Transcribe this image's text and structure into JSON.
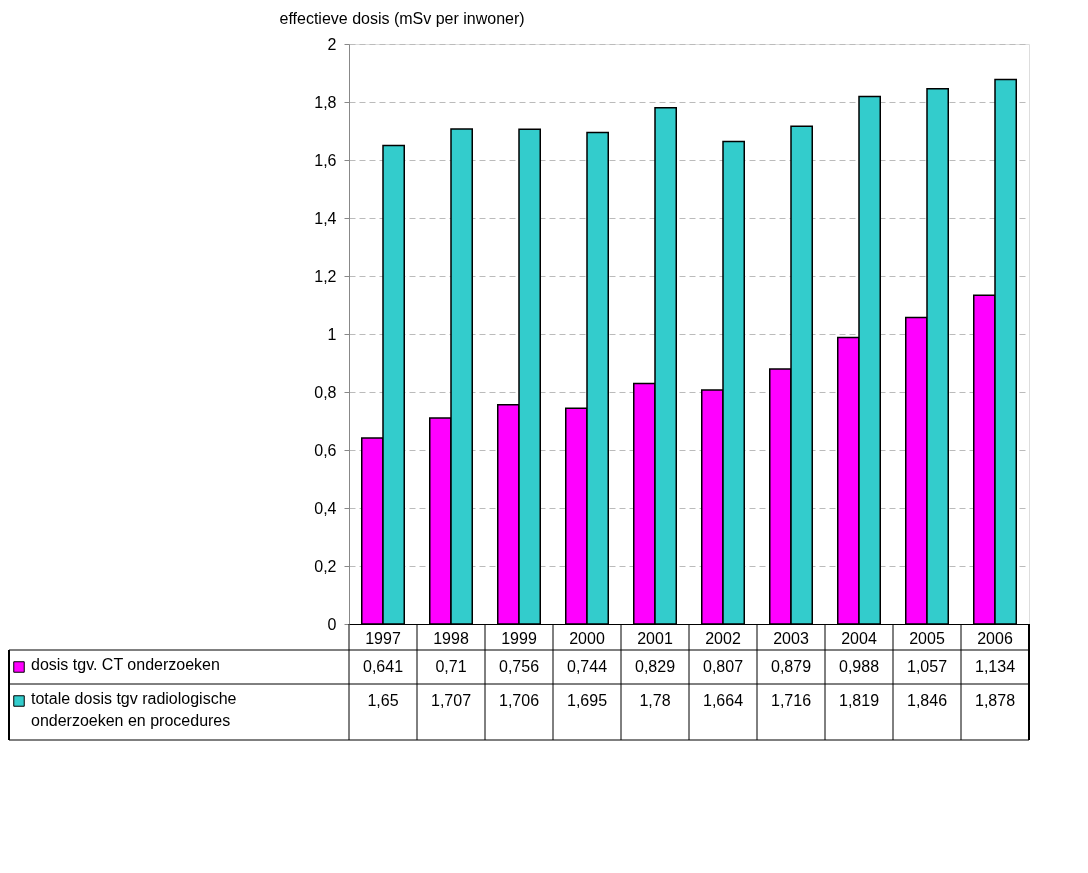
{
  "chart_data": {
    "type": "bar",
    "ylabel": "effectieve dosis (mSv per inwoner)",
    "categories": [
      "1997",
      "1998",
      "1999",
      "2000",
      "2001",
      "2002",
      "2003",
      "2004",
      "2005",
      "2006"
    ],
    "series": [
      {
        "name": "dosis tgv. CT onderzoeken",
        "color": "#ff00ff",
        "values": [
          0.641,
          0.71,
          0.756,
          0.744,
          0.829,
          0.807,
          0.879,
          0.988,
          1.057,
          1.134
        ],
        "value_labels": [
          "0,641",
          "0,71",
          "0,756",
          "0,744",
          "0,829",
          "0,807",
          "0,879",
          "0,988",
          "1,057",
          "1,134"
        ]
      },
      {
        "name": "totale dosis tgv radiologische onderzoeken en procedures",
        "color": "#33cccc",
        "values": [
          1.65,
          1.707,
          1.706,
          1.695,
          1.78,
          1.664,
          1.716,
          1.819,
          1.846,
          1.878
        ],
        "value_labels": [
          "1,65",
          "1,707",
          "1,706",
          "1,695",
          "1,78",
          "1,664",
          "1,716",
          "1,819",
          "1,846",
          "1,878"
        ]
      }
    ],
    "ylim": [
      0,
      2
    ],
    "yticks": [
      0,
      {
        "value": 0.2,
        "label": "0,2"
      },
      {
        "value": 0.4,
        "label": "0,4"
      },
      {
        "value": 0.6,
        "label": "0,6"
      },
      {
        "value": 0.8,
        "label": "0,8"
      },
      1,
      {
        "value": 1.2,
        "label": "1,2"
      },
      {
        "value": 1.4,
        "label": "1,4"
      },
      {
        "value": 1.6,
        "label": "1,6"
      },
      {
        "value": 1.8,
        "label": "1,8"
      },
      2
    ],
    "grid": "y",
    "legend": "bottom left"
  }
}
